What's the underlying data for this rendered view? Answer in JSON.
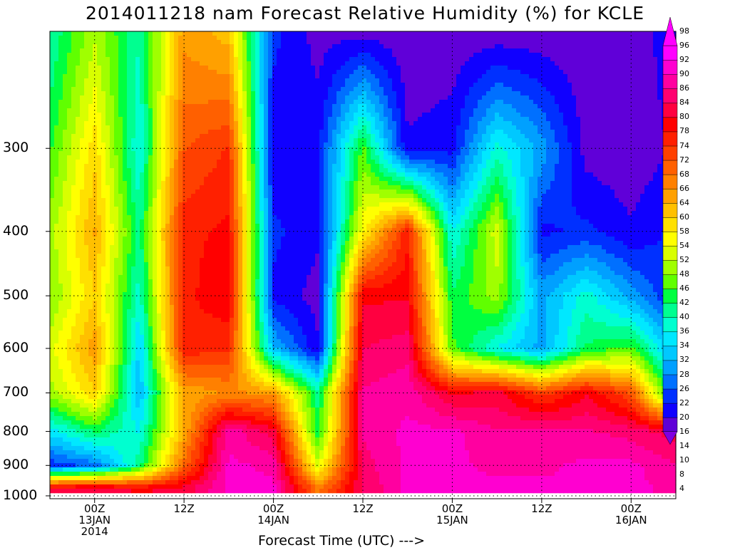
{
  "chart_data": {
    "type": "heatmap",
    "title": "2014011218 nam Forecast Relative Humidity (%) for KCLE",
    "xlabel": "Forecast Time (UTC) --->",
    "ylabel": "",
    "x_ticks": [
      {
        "label": "00Z",
        "sub": [
          "13JAN",
          "2014"
        ],
        "hours": 6
      },
      {
        "label": "12Z",
        "sub": [],
        "hours": 18
      },
      {
        "label": "00Z",
        "sub": [
          "14JAN"
        ],
        "hours": 30
      },
      {
        "label": "12Z",
        "sub": [],
        "hours": 42
      },
      {
        "label": "00Z",
        "sub": [
          "15JAN"
        ],
        "hours": 54
      },
      {
        "label": "12Z",
        "sub": [],
        "hours": 66
      },
      {
        "label": "00Z",
        "sub": [
          "16JAN"
        ],
        "hours": 78
      }
    ],
    "xlim_hours": [
      0,
      84
    ],
    "y_ticks": [
      300,
      400,
      500,
      600,
      700,
      800,
      900,
      1000
    ],
    "ylim_hPa": [
      1010,
      200
    ],
    "y_scale": "log-pressure",
    "grid": true,
    "colorbar": {
      "placement": "right",
      "levels": [
        4,
        8,
        10,
        14,
        16,
        20,
        22,
        26,
        28,
        32,
        34,
        36,
        40,
        42,
        46,
        48,
        52,
        54,
        58,
        60,
        64,
        66,
        68,
        72,
        74,
        78,
        80,
        84,
        86,
        90,
        92,
        96,
        98
      ],
      "colors": [
        "#6000d8",
        "#1000ff",
        "#0030ff",
        "#0070ff",
        "#00a0ff",
        "#00c8ff",
        "#00e8ff",
        "#00ffd0",
        "#00ff90",
        "#00ff40",
        "#60ff00",
        "#a0ff00",
        "#d8ff00",
        "#ffff00",
        "#ffe000",
        "#ffc000",
        "#ffa000",
        "#ff8000",
        "#ff6000",
        "#ff4000",
        "#ff2000",
        "#ff0000",
        "#ff0040",
        "#ff0070",
        "#ff00a0",
        "#ff00d0",
        "#ff00ff"
      ]
    },
    "rh_grid": {
      "time_hours": [
        0,
        6,
        12,
        18,
        24,
        30,
        36,
        42,
        48,
        54,
        60,
        66,
        72,
        78,
        84
      ],
      "pressure_hPa": [
        200,
        300,
        400,
        500,
        600,
        700,
        800,
        900,
        975
      ],
      "values": [
        [
          32,
          45,
          32,
          62,
          58,
          12,
          6,
          6,
          5,
          5,
          5,
          5,
          5,
          5,
          10
        ],
        [
          38,
          55,
          28,
          70,
          74,
          8,
          10,
          40,
          8,
          10,
          30,
          20,
          6,
          5,
          8
        ],
        [
          44,
          60,
          34,
          76,
          78,
          12,
          8,
          52,
          76,
          28,
          48,
          10,
          12,
          8,
          12
        ],
        [
          42,
          56,
          30,
          76,
          80,
          10,
          6,
          80,
          80,
          36,
          44,
          20,
          30,
          20,
          10
        ],
        [
          48,
          62,
          24,
          76,
          74,
          22,
          8,
          84,
          86,
          40,
          28,
          20,
          36,
          40,
          20
        ],
        [
          44,
          56,
          22,
          60,
          64,
          62,
          34,
          88,
          90,
          80,
          82,
          72,
          80,
          70,
          30
        ],
        [
          26,
          36,
          28,
          60,
          90,
          82,
          36,
          88,
          92,
          92,
          88,
          88,
          88,
          86,
          82
        ],
        [
          12,
          16,
          34,
          68,
          92,
          90,
          48,
          86,
          92,
          92,
          90,
          90,
          92,
          92,
          88
        ],
        [
          82,
          84,
          80,
          82,
          92,
          92,
          66,
          84,
          92,
          92,
          92,
          92,
          92,
          92,
          90
        ]
      ]
    }
  }
}
